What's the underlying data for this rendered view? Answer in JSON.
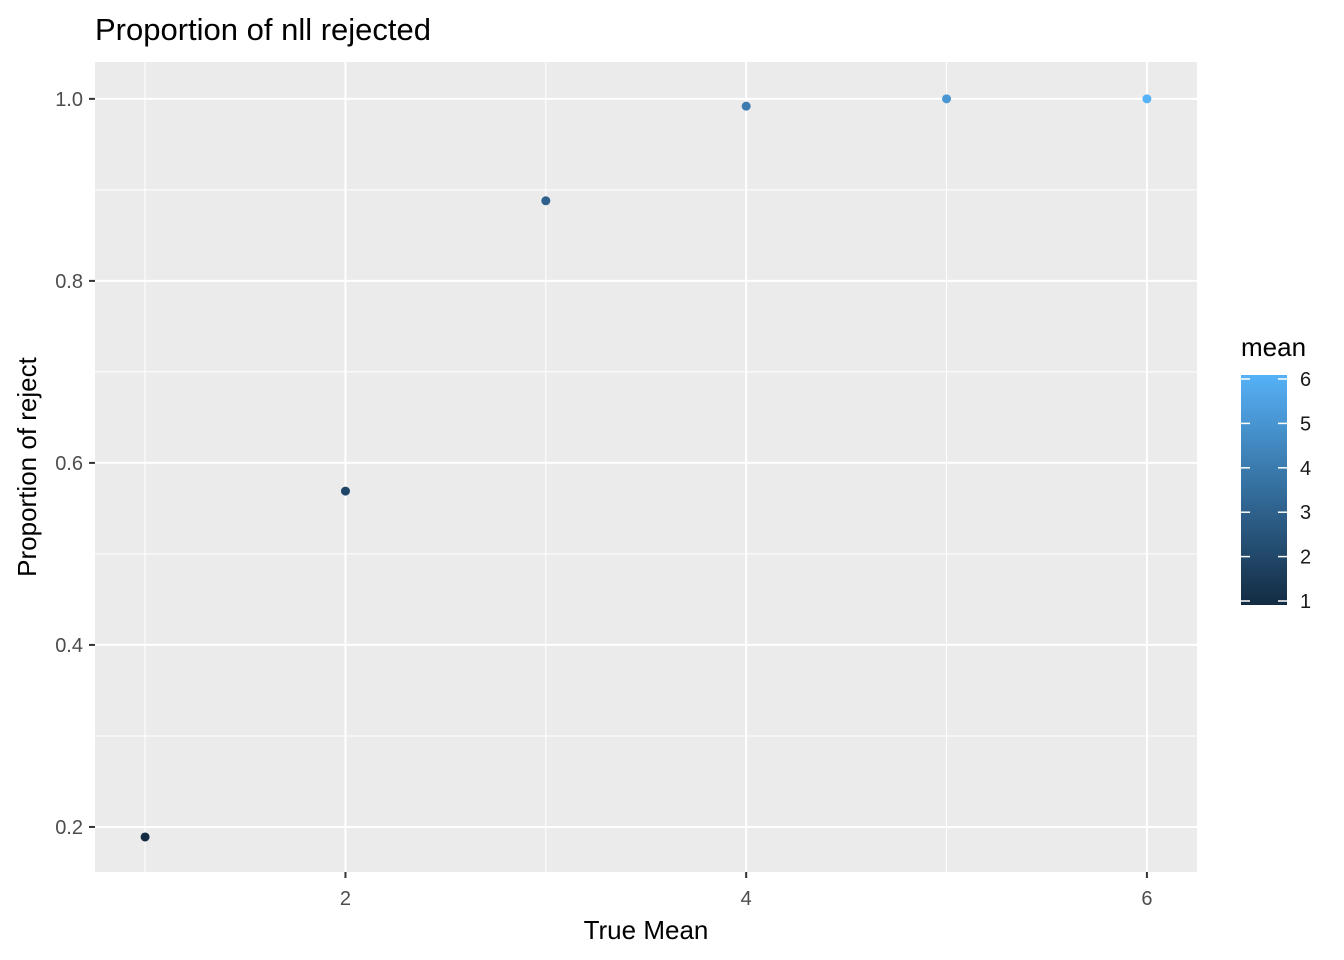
{
  "chart_data": {
    "type": "scatter",
    "title": "Proportion of nll rejected",
    "xlabel": "True Mean",
    "ylabel": "Proportion of reject",
    "xlim": [
      0.75,
      6.25
    ],
    "ylim": [
      0.1505,
      1.0405
    ],
    "x_ticks": [
      2,
      4,
      6
    ],
    "x_tick_labels": [
      "2",
      "4",
      "6"
    ],
    "x_minor_ticks": [
      1,
      3,
      5
    ],
    "y_ticks": [
      0.2,
      0.4,
      0.6,
      0.8,
      1.0
    ],
    "y_tick_labels": [
      "0.2",
      "0.4",
      "0.6",
      "0.8",
      "1.0"
    ],
    "y_minor_ticks": [
      0.3,
      0.5,
      0.7,
      0.9
    ],
    "points": [
      {
        "x": 1,
        "y": 0.189,
        "mean": 1
      },
      {
        "x": 2,
        "y": 0.569,
        "mean": 2
      },
      {
        "x": 3,
        "y": 0.888,
        "mean": 3
      },
      {
        "x": 4,
        "y": 0.992,
        "mean": 4
      },
      {
        "x": 5,
        "y": 1.0,
        "mean": 5
      },
      {
        "x": 6,
        "y": 1.0,
        "mean": 6
      }
    ],
    "grid": true,
    "legend": {
      "title": "mean",
      "position": "right",
      "type": "colorbar",
      "range": [
        1,
        6
      ],
      "ticks": [
        1,
        2,
        3,
        4,
        5,
        6
      ],
      "tick_labels": [
        "1",
        "2",
        "3",
        "4",
        "5",
        "6"
      ],
      "low_color": "#132B43",
      "high_color": "#56B1F7"
    },
    "colors": {
      "panel_background": "#EBEBEB",
      "grid_line": "#FFFFFF"
    }
  }
}
